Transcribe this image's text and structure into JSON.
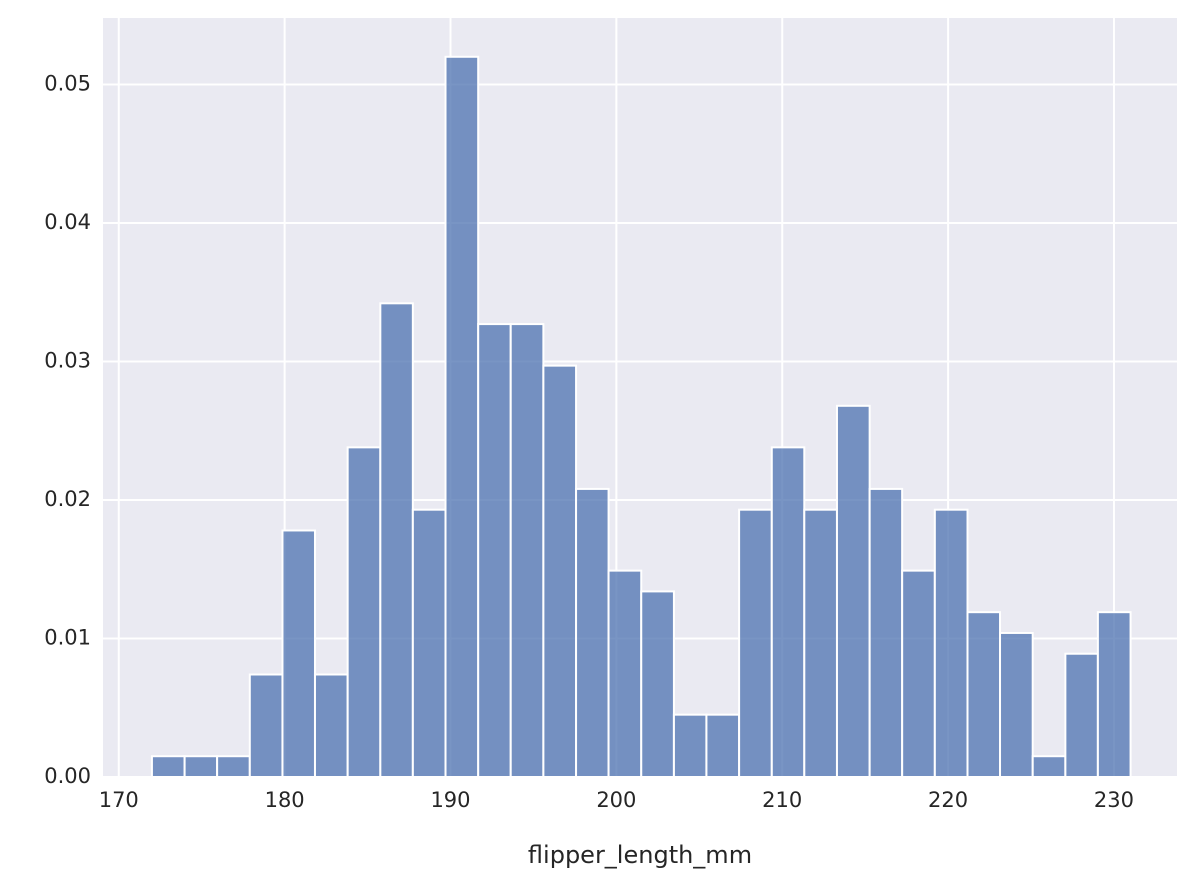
{
  "chart_data": {
    "type": "histogram",
    "xlabel": "flipper_length_mm",
    "bins": [
      172,
      173.97,
      175.93,
      177.9,
      179.87,
      181.83,
      183.8,
      185.77,
      187.73,
      189.7,
      191.67,
      193.63,
      195.6,
      197.57,
      199.53,
      201.5,
      203.47,
      205.43,
      207.4,
      209.37,
      211.33,
      213.3,
      215.27,
      217.23,
      219.2,
      221.17,
      223.13,
      225.1,
      227.07,
      229.03,
      231
    ],
    "values": [
      0.0015,
      0.0015,
      0.0015,
      0.0074,
      0.0178,
      0.0074,
      0.0238,
      0.0342,
      0.0193,
      0.052,
      0.0327,
      0.0327,
      0.0297,
      0.0208,
      0.0149,
      0.0134,
      0.0045,
      0.0045,
      0.0193,
      0.0238,
      0.0193,
      0.0268,
      0.0208,
      0.0149,
      0.0193,
      0.0119,
      0.0104,
      0.0015,
      0.0089,
      0.0119
    ],
    "color": "#4c72b0",
    "alpha": 0.75,
    "xlim": [
      169.05,
      233.8
    ],
    "xticks": [
      170,
      180,
      190,
      200,
      210,
      220,
      230
    ],
    "ylim": [
      0,
      0.0548
    ],
    "yticks": [
      {
        "value": 0,
        "label": "0.00"
      },
      {
        "value": 0.01,
        "label": "0.01"
      },
      {
        "value": 0.02,
        "label": "0.02"
      },
      {
        "value": 0.03,
        "label": "0.03"
      },
      {
        "value": 0.04,
        "label": "0.04"
      },
      {
        "value": 0.05,
        "label": "0.05"
      }
    ],
    "grid": true
  }
}
